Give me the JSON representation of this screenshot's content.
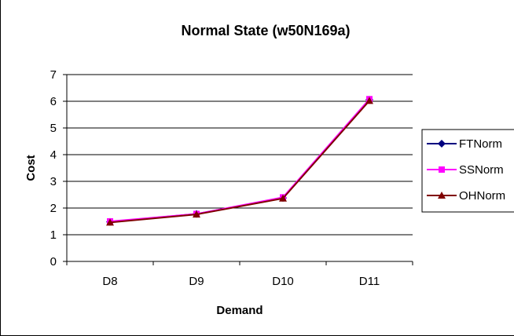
{
  "chart_data": {
    "type": "line",
    "title": "Normal State (w50N169a)",
    "xlabel": "Demand",
    "ylabel": "Cost",
    "categories": [
      "D8",
      "D9",
      "D10",
      "D11"
    ],
    "ylim": [
      0,
      7
    ],
    "y_ticks": [
      0,
      1,
      2,
      3,
      4,
      5,
      6,
      7
    ],
    "grid": true,
    "legend_position": "right",
    "series": [
      {
        "name": "FTNorm",
        "values": [
          1.48,
          1.78,
          2.38,
          6.06
        ],
        "color": "#000080",
        "marker": "diamond"
      },
      {
        "name": "SSNorm",
        "values": [
          1.5,
          1.78,
          2.4,
          6.08
        ],
        "color": "#ff00ff",
        "marker": "square"
      },
      {
        "name": "OHNorm",
        "values": [
          1.46,
          1.76,
          2.36,
          6.02
        ],
        "color": "#800000",
        "marker": "triangle"
      }
    ]
  }
}
